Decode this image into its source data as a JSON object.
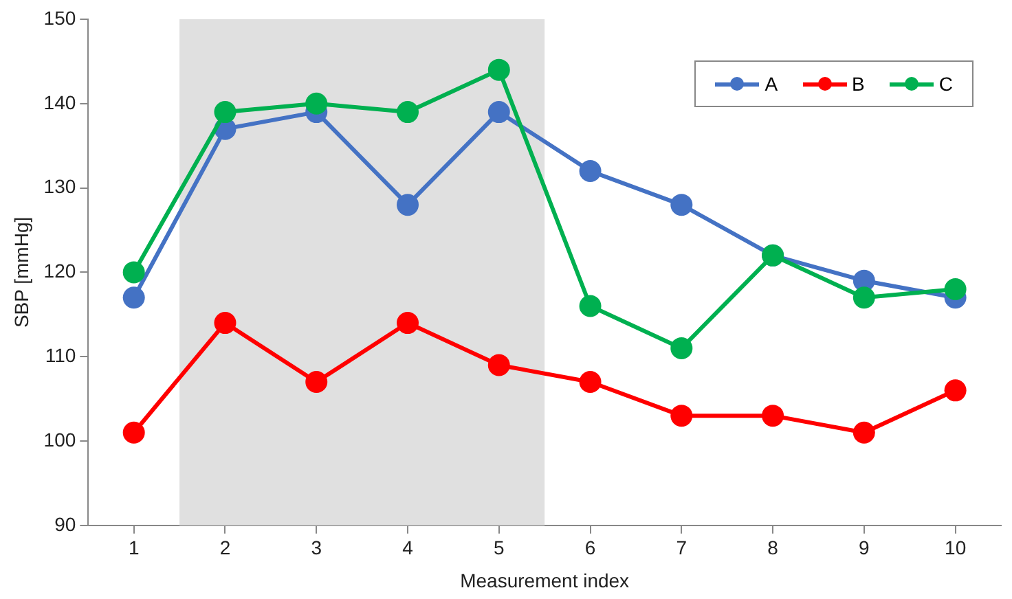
{
  "chart_data": {
    "type": "line",
    "xlabel": "Measurement index",
    "ylabel": "SBP [mmHg]",
    "x": [
      1,
      2,
      3,
      4,
      5,
      6,
      7,
      8,
      9,
      10
    ],
    "xlim": [
      0.5,
      10.5
    ],
    "xticks": [
      1,
      2,
      3,
      4,
      5,
      6,
      7,
      8,
      9,
      10
    ],
    "ylim": [
      90,
      150
    ],
    "yticks": [
      90,
      100,
      110,
      120,
      130,
      140,
      150
    ],
    "series": [
      {
        "name": "A",
        "color": "#4472c4",
        "values": [
          117,
          137,
          139,
          128,
          139,
          132,
          128,
          122,
          119,
          117
        ]
      },
      {
        "name": "B",
        "color": "#ff0000",
        "values": [
          101,
          114,
          107,
          114,
          109,
          107,
          103,
          103,
          101,
          106
        ]
      },
      {
        "name": "C",
        "color": "#00b050",
        "values": [
          120,
          139,
          140,
          139,
          144,
          116,
          111,
          122,
          117,
          118
        ]
      }
    ],
    "bands": [
      {
        "axis": "x",
        "from": 1.5,
        "to": 5.5,
        "color": "#e0e0e0"
      }
    ],
    "marker": "circle",
    "line_style": "solid",
    "grid": false,
    "legend": "top right"
  }
}
